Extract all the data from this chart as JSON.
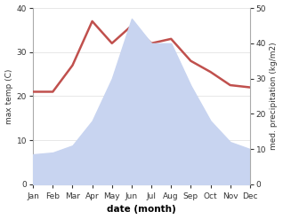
{
  "months": [
    "Jan",
    "Feb",
    "Mar",
    "Apr",
    "May",
    "Jun",
    "Jul",
    "Aug",
    "Sep",
    "Oct",
    "Nov",
    "Dec"
  ],
  "month_x": [
    1,
    2,
    3,
    4,
    5,
    6,
    7,
    8,
    9,
    10,
    11,
    12
  ],
  "temperature": [
    21.0,
    21.0,
    27.0,
    37.0,
    32.0,
    36.0,
    32.0,
    33.0,
    28.0,
    25.5,
    22.5,
    22.0
  ],
  "precipitation": [
    8.5,
    9.0,
    11.0,
    18.0,
    30.0,
    47.0,
    40.0,
    40.0,
    28.0,
    18.0,
    12.0,
    10.0
  ],
  "temp_color": "#c0504d",
  "precip_fill_color": "#c8d4f0",
  "temp_ylim": [
    0,
    40
  ],
  "precip_ylim": [
    0,
    50
  ],
  "temp_yticks": [
    0,
    10,
    20,
    30,
    40
  ],
  "precip_yticks": [
    0,
    10,
    20,
    30,
    40,
    50
  ],
  "ylabel_left": "max temp (C)",
  "ylabel_right": "med. precipitation (kg/m2)",
  "xlabel": "date (month)",
  "bg_color": "#ffffff",
  "line_width": 1.8
}
